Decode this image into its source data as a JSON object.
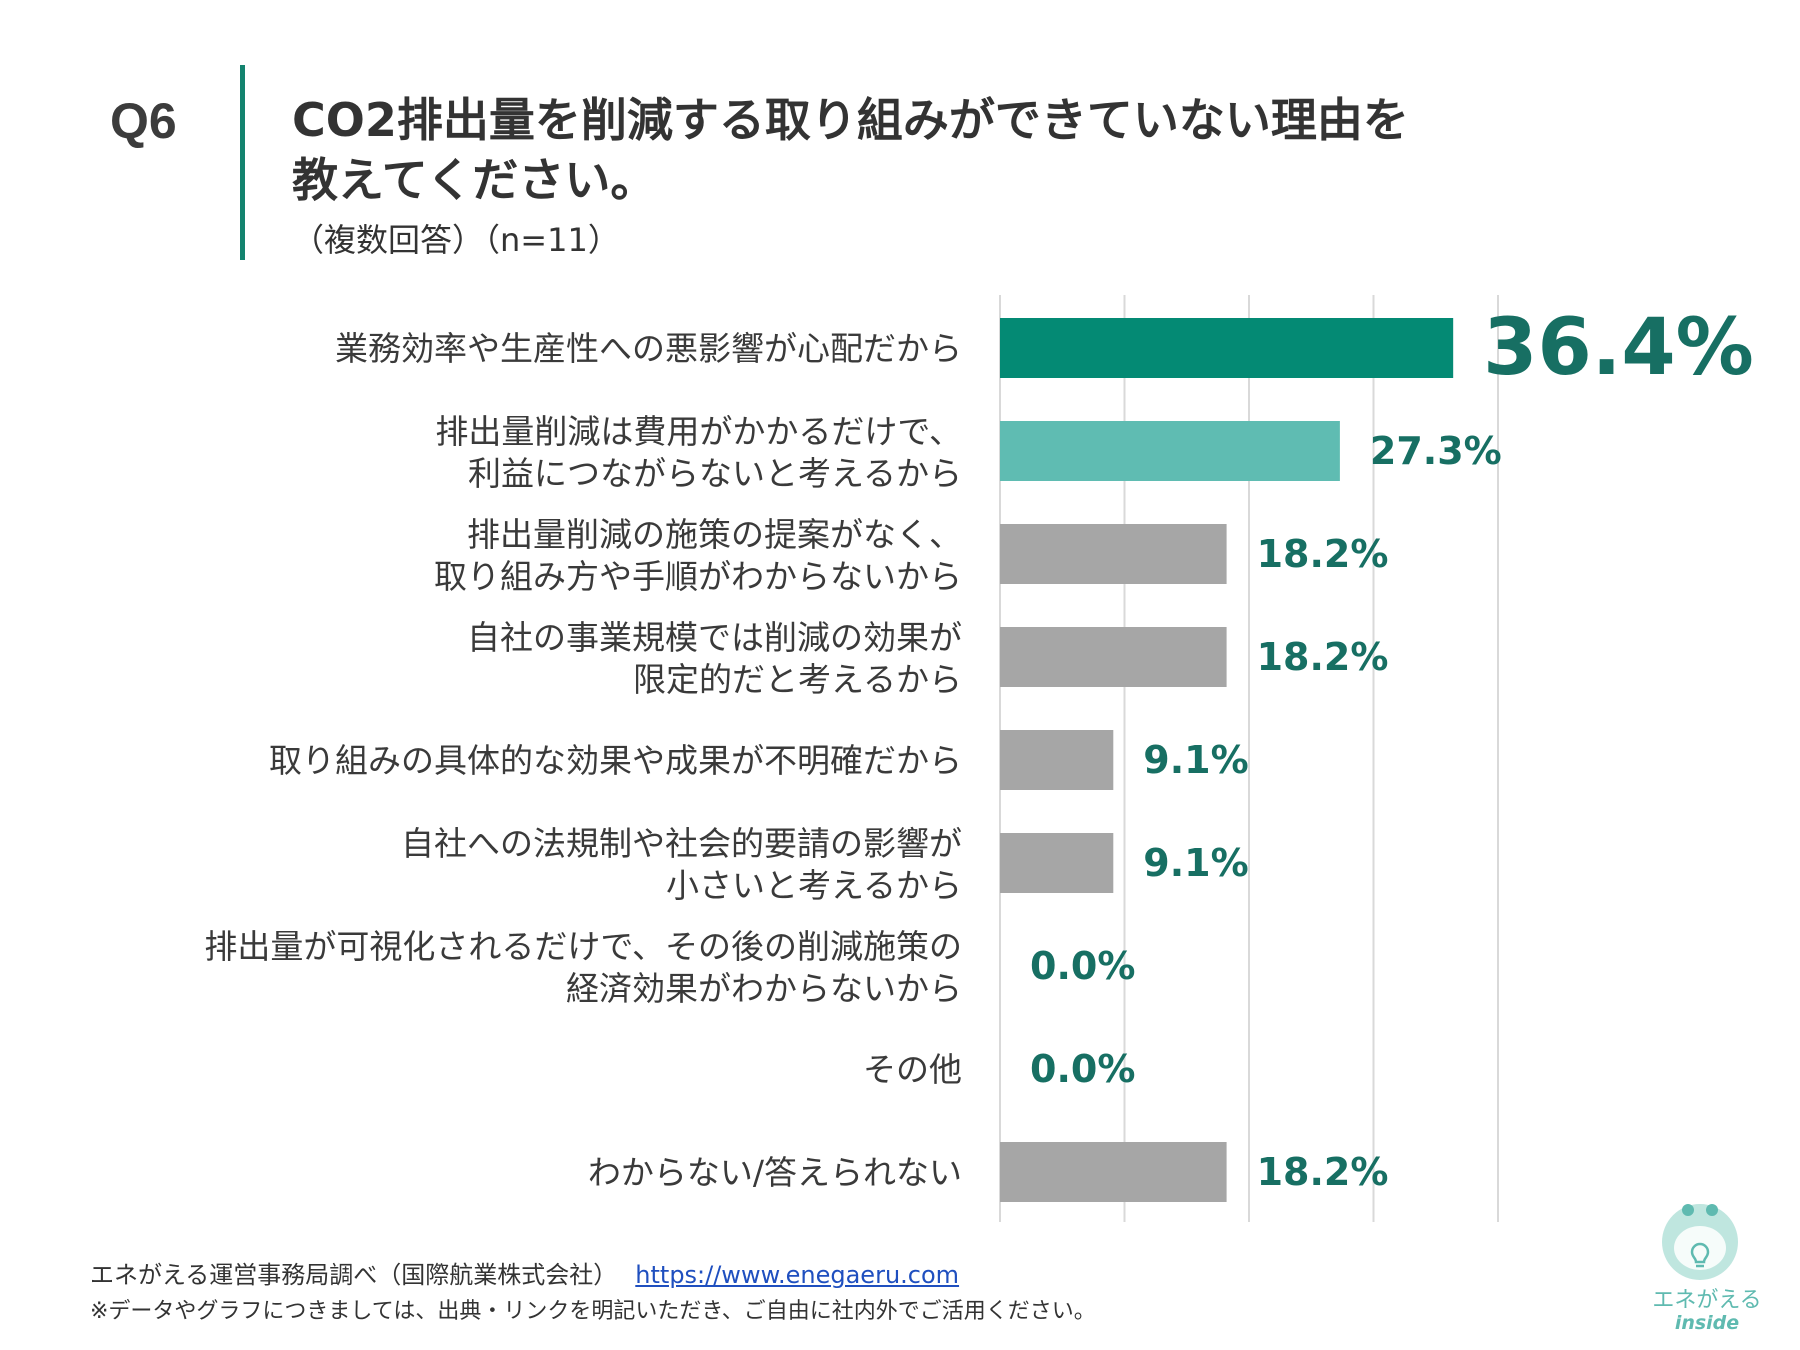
{
  "header": {
    "question_number": "Q6",
    "title_line1": "CO2排出量を削減する取り組みができていない理由を",
    "title_line2": "教えてください。",
    "subtitle": "（複数回答）（n=11）"
  },
  "colors": {
    "accent": "#13836f",
    "highlight": "#048a74",
    "secondary": "#5fbcb2",
    "neutral": "#a6a6a6",
    "value_text": "#176f63",
    "grid": "#d9d9d9"
  },
  "chart_data": {
    "type": "bar",
    "orientation": "horizontal",
    "unit": "%",
    "xlim": [
      0,
      40
    ],
    "grid": true,
    "categories": [
      [
        "業務効率や生産性への悪影響が心配だから"
      ],
      [
        "排出量削減は費用がかかるだけで、",
        "利益につながらないと考えるから"
      ],
      [
        "排出量削減の施策の提案がなく、",
        "取り組み方や手順がわからないから"
      ],
      [
        "自社の事業規模では削減の効果が",
        "限定的だと考えるから"
      ],
      [
        "取り組みの具体的な効果や成果が不明確だから"
      ],
      [
        "自社への法規制や社会的要請の影響が",
        "小さいと考えるから"
      ],
      [
        "排出量が可視化されるだけで、その後の削減施策の",
        "経済効果がわからないから"
      ],
      [
        "その他"
      ],
      [
        "わからない/答えられない"
      ]
    ],
    "values": [
      36.4,
      27.3,
      18.2,
      18.2,
      9.1,
      9.1,
      0.0,
      0.0,
      18.2
    ],
    "value_labels": [
      "36.4%",
      "27.3%",
      "18.2%",
      "18.2%",
      "9.1%",
      "9.1%",
      "0.0%",
      "0.0%",
      "18.2%"
    ]
  },
  "footer": {
    "source": "エネがえる運営事務局調べ（国際航業株式会社）",
    "link": "https://www.enegaeru.com",
    "note": "※データやグラフにつきましては、出典・リンクを明記いただき、ご自由に社内外でご活用ください。"
  },
  "logo": {
    "name": "エネがえる",
    "sub": "inside"
  }
}
